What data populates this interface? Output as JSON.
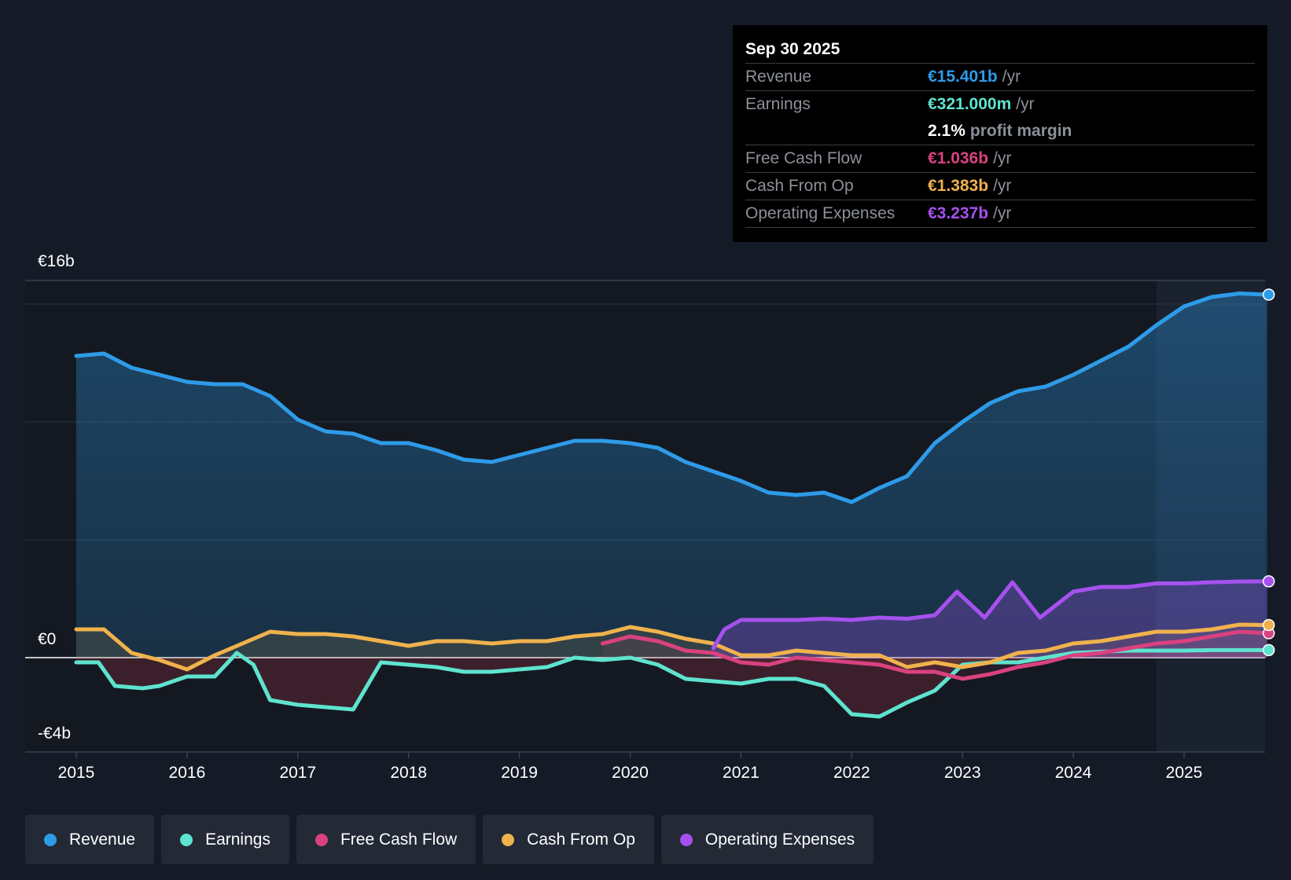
{
  "tooltip": {
    "date": "Sep 30 2025",
    "rows": [
      {
        "label": "Revenue",
        "value": "€15.401b",
        "unit": "/yr",
        "color": "#2e9be8"
      },
      {
        "label": "Earnings",
        "value": "€321.000m",
        "unit": "/yr",
        "color": "#5ee3cf"
      },
      {
        "label": "",
        "value": "2.1%",
        "unit": "profit margin",
        "color": "#ffffff"
      },
      {
        "label": "Free Cash Flow",
        "value": "€1.036b",
        "unit": "/yr",
        "color": "#d9427f"
      },
      {
        "label": "Cash From Op",
        "value": "€1.383b",
        "unit": "/yr",
        "color": "#f0b24d"
      },
      {
        "label": "Operating Expenses",
        "value": "€3.237b",
        "unit": "/yr",
        "color": "#a651ee"
      }
    ]
  },
  "legend": [
    {
      "label": "Revenue",
      "color": "#2e9be8"
    },
    {
      "label": "Earnings",
      "color": "#5ee3cf"
    },
    {
      "label": "Free Cash Flow",
      "color": "#d9427f"
    },
    {
      "label": "Cash From Op",
      "color": "#f0b24d"
    },
    {
      "label": "Operating Expenses",
      "color": "#a651ee"
    }
  ],
  "chart_data": {
    "type": "line",
    "title": "",
    "xlabel": "",
    "ylabel": "",
    "ylim": [
      -4,
      16
    ],
    "xlim": [
      2014.55,
      2025.83
    ],
    "y_tick_labels": [
      {
        "value": 16,
        "label": "€16b"
      },
      {
        "value": 0,
        "label": "€0"
      },
      {
        "value": -4,
        "label": "-€4b"
      }
    ],
    "gridlines": [
      15,
      10,
      5,
      0
    ],
    "x_ticks": [
      "2015",
      "2016",
      "2017",
      "2018",
      "2019",
      "2020",
      "2021",
      "2022",
      "2023",
      "2024",
      "2025"
    ],
    "forecast_shade_start": 2024.75,
    "series": [
      {
        "name": "Revenue",
        "color": "#2e9be8",
        "points": [
          [
            2015,
            12.8
          ],
          [
            2015.25,
            12.9
          ],
          [
            2015.5,
            12.3
          ],
          [
            2015.75,
            12.0
          ],
          [
            2016,
            11.7
          ],
          [
            2016.25,
            11.6
          ],
          [
            2016.5,
            11.6
          ],
          [
            2016.75,
            11.1
          ],
          [
            2017,
            10.1
          ],
          [
            2017.25,
            9.6
          ],
          [
            2017.5,
            9.5
          ],
          [
            2017.75,
            9.1
          ],
          [
            2018,
            9.1
          ],
          [
            2018.25,
            8.8
          ],
          [
            2018.5,
            8.4
          ],
          [
            2018.75,
            8.3
          ],
          [
            2019,
            8.6
          ],
          [
            2019.25,
            8.9
          ],
          [
            2019.5,
            9.2
          ],
          [
            2019.75,
            9.2
          ],
          [
            2020,
            9.1
          ],
          [
            2020.25,
            8.9
          ],
          [
            2020.5,
            8.3
          ],
          [
            2020.75,
            7.9
          ],
          [
            2021,
            7.5
          ],
          [
            2021.25,
            7.0
          ],
          [
            2021.5,
            6.9
          ],
          [
            2021.75,
            7.0
          ],
          [
            2022,
            6.6
          ],
          [
            2022.25,
            7.2
          ],
          [
            2022.5,
            7.7
          ],
          [
            2022.75,
            9.1
          ],
          [
            2023,
            10.0
          ],
          [
            2023.25,
            10.8
          ],
          [
            2023.5,
            11.3
          ],
          [
            2023.75,
            11.5
          ],
          [
            2024,
            12.0
          ],
          [
            2024.25,
            12.6
          ],
          [
            2024.5,
            13.2
          ],
          [
            2024.75,
            14.1
          ],
          [
            2025,
            14.9
          ],
          [
            2025.25,
            15.3
          ],
          [
            2025.5,
            15.45
          ],
          [
            2025.75,
            15.401
          ]
        ]
      },
      {
        "name": "Earnings",
        "color": "#5ee3cf",
        "points": [
          [
            2015,
            -0.2
          ],
          [
            2015.2,
            -0.2
          ],
          [
            2015.35,
            -1.2
          ],
          [
            2015.6,
            -1.3
          ],
          [
            2015.75,
            -1.2
          ],
          [
            2016,
            -0.8
          ],
          [
            2016.25,
            -0.8
          ],
          [
            2016.45,
            0.2
          ],
          [
            2016.6,
            -0.3
          ],
          [
            2016.75,
            -1.8
          ],
          [
            2017,
            -2.0
          ],
          [
            2017.25,
            -2.1
          ],
          [
            2017.5,
            -2.2
          ],
          [
            2017.75,
            -0.2
          ],
          [
            2018,
            -0.3
          ],
          [
            2018.25,
            -0.4
          ],
          [
            2018.5,
            -0.6
          ],
          [
            2018.75,
            -0.6
          ],
          [
            2019,
            -0.5
          ],
          [
            2019.25,
            -0.4
          ],
          [
            2019.5,
            0
          ],
          [
            2019.75,
            -0.1
          ],
          [
            2020,
            0
          ],
          [
            2020.25,
            -0.3
          ],
          [
            2020.5,
            -0.9
          ],
          [
            2020.75,
            -1.0
          ],
          [
            2021,
            -1.1
          ],
          [
            2021.25,
            -0.9
          ],
          [
            2021.5,
            -0.9
          ],
          [
            2021.75,
            -1.2
          ],
          [
            2022,
            -2.4
          ],
          [
            2022.25,
            -2.5
          ],
          [
            2022.5,
            -1.9
          ],
          [
            2022.75,
            -1.4
          ],
          [
            2023,
            -0.3
          ],
          [
            2023.25,
            -0.2
          ],
          [
            2023.5,
            -0.2
          ],
          [
            2023.75,
            0
          ],
          [
            2024,
            0.2
          ],
          [
            2024.25,
            0.25
          ],
          [
            2024.5,
            0.3
          ],
          [
            2024.75,
            0.3
          ],
          [
            2025,
            0.3
          ],
          [
            2025.25,
            0.32
          ],
          [
            2025.5,
            0.32
          ],
          [
            2025.75,
            0.321
          ]
        ]
      },
      {
        "name": "Free Cash Flow",
        "color": "#d9427f",
        "points": [
          [
            2019.75,
            0.6
          ],
          [
            2020,
            0.9
          ],
          [
            2020.25,
            0.7
          ],
          [
            2020.5,
            0.3
          ],
          [
            2020.75,
            0.2
          ],
          [
            2021,
            -0.2
          ],
          [
            2021.25,
            -0.3
          ],
          [
            2021.5,
            0
          ],
          [
            2021.75,
            -0.1
          ],
          [
            2022,
            -0.2
          ],
          [
            2022.25,
            -0.3
          ],
          [
            2022.5,
            -0.6
          ],
          [
            2022.75,
            -0.6
          ],
          [
            2023,
            -0.9
          ],
          [
            2023.25,
            -0.7
          ],
          [
            2023.5,
            -0.4
          ],
          [
            2023.75,
            -0.2
          ],
          [
            2024,
            0.1
          ],
          [
            2024.25,
            0.2
          ],
          [
            2024.5,
            0.4
          ],
          [
            2024.75,
            0.6
          ],
          [
            2025,
            0.7
          ],
          [
            2025.25,
            0.9
          ],
          [
            2025.5,
            1.1
          ],
          [
            2025.75,
            1.036
          ]
        ]
      },
      {
        "name": "Cash From Op",
        "color": "#f0b24d",
        "points": [
          [
            2015,
            1.2
          ],
          [
            2015.25,
            1.2
          ],
          [
            2015.5,
            0.2
          ],
          [
            2015.75,
            -0.1
          ],
          [
            2016,
            -0.5
          ],
          [
            2016.25,
            0.1
          ],
          [
            2016.5,
            0.6
          ],
          [
            2016.75,
            1.1
          ],
          [
            2017,
            1.0
          ],
          [
            2017.25,
            1.0
          ],
          [
            2017.5,
            0.9
          ],
          [
            2017.75,
            0.7
          ],
          [
            2018,
            0.5
          ],
          [
            2018.25,
            0.7
          ],
          [
            2018.5,
            0.7
          ],
          [
            2018.75,
            0.6
          ],
          [
            2019,
            0.7
          ],
          [
            2019.25,
            0.7
          ],
          [
            2019.5,
            0.9
          ],
          [
            2019.75,
            1.0
          ],
          [
            2020,
            1.3
          ],
          [
            2020.25,
            1.1
          ],
          [
            2020.5,
            0.8
          ],
          [
            2020.75,
            0.6
          ],
          [
            2021,
            0.1
          ],
          [
            2021.25,
            0.1
          ],
          [
            2021.5,
            0.3
          ],
          [
            2021.75,
            0.2
          ],
          [
            2022,
            0.1
          ],
          [
            2022.25,
            0.1
          ],
          [
            2022.5,
            -0.4
          ],
          [
            2022.75,
            -0.2
          ],
          [
            2023,
            -0.4
          ],
          [
            2023.25,
            -0.2
          ],
          [
            2023.5,
            0.2
          ],
          [
            2023.75,
            0.3
          ],
          [
            2024,
            0.6
          ],
          [
            2024.25,
            0.7
          ],
          [
            2024.5,
            0.9
          ],
          [
            2024.75,
            1.1
          ],
          [
            2025,
            1.1
          ],
          [
            2025.25,
            1.2
          ],
          [
            2025.5,
            1.4
          ],
          [
            2025.75,
            1.383
          ]
        ]
      },
      {
        "name": "Operating Expenses",
        "color": "#a651ee",
        "points": [
          [
            2020.75,
            0.4
          ],
          [
            2020.85,
            1.2
          ],
          [
            2021,
            1.6
          ],
          [
            2021.25,
            1.6
          ],
          [
            2021.5,
            1.6
          ],
          [
            2021.75,
            1.65
          ],
          [
            2022,
            1.6
          ],
          [
            2022.25,
            1.7
          ],
          [
            2022.5,
            1.65
          ],
          [
            2022.75,
            1.8
          ],
          [
            2022.95,
            2.8
          ],
          [
            2023.2,
            1.7
          ],
          [
            2023.45,
            3.2
          ],
          [
            2023.7,
            1.7
          ],
          [
            2024,
            2.8
          ],
          [
            2024.25,
            3.0
          ],
          [
            2024.5,
            3.0
          ],
          [
            2024.75,
            3.15
          ],
          [
            2025,
            3.15
          ],
          [
            2025.25,
            3.2
          ],
          [
            2025.5,
            3.23
          ],
          [
            2025.75,
            3.237
          ]
        ]
      }
    ]
  }
}
